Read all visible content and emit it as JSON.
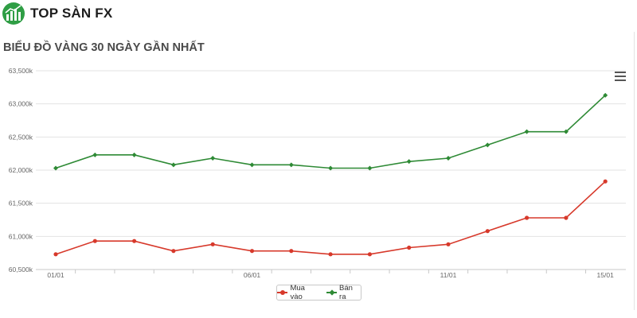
{
  "brand": {
    "name": "TOP SÀN FX"
  },
  "colors": {
    "buy": "#d7392b",
    "sell": "#2e8a35",
    "grid": "#e3e3e3",
    "axis": "#c8c8c8",
    "label": "#666666"
  },
  "chart_data": {
    "type": "line",
    "title": "BIỂU ĐỒ VÀNG 30 NGÀY GẦN NHẤT",
    "xlabel": "",
    "ylabel": "",
    "x": [
      "01/01",
      "02/01",
      "03/01",
      "04/01",
      "05/01",
      "06/01",
      "07/01",
      "08/01",
      "09/01",
      "10/01",
      "11/01",
      "12/01",
      "13/01",
      "14/01",
      "15/01"
    ],
    "x_tick_labels": [
      "01/01",
      "06/01",
      "11/01",
      "15/01"
    ],
    "y_tick_labels": [
      "60,500k",
      "61,000k",
      "61,500k",
      "62,000k",
      "62,500k",
      "63,000k",
      "63,500k"
    ],
    "ylim": [
      60500,
      63500
    ],
    "grid": true,
    "legend_position": "bottom-center",
    "series": [
      {
        "name": "Mua vào",
        "marker": "circle",
        "values": [
          60730,
          60930,
          60930,
          60780,
          60880,
          60780,
          60780,
          60730,
          60730,
          60830,
          60880,
          61080,
          61280,
          61280,
          61830
        ]
      },
      {
        "name": "Bán ra",
        "marker": "diamond",
        "values": [
          62030,
          62230,
          62230,
          62080,
          62180,
          62080,
          62080,
          62030,
          62030,
          62130,
          62180,
          62380,
          62580,
          62580,
          63130
        ]
      }
    ]
  }
}
